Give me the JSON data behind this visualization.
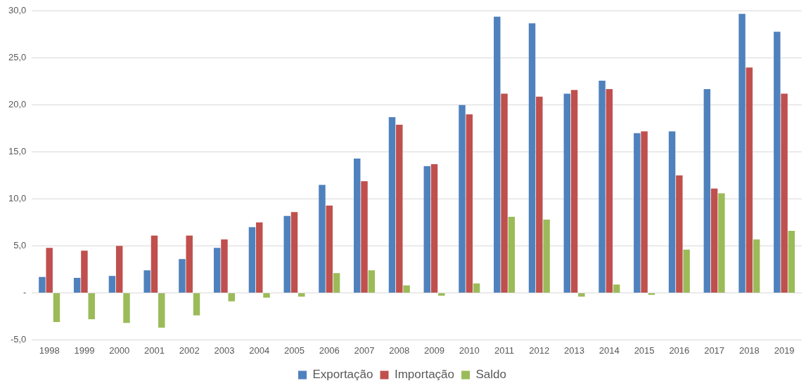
{
  "chart_data": {
    "type": "bar",
    "categories": [
      "1998",
      "1999",
      "2000",
      "2001",
      "2002",
      "2003",
      "2004",
      "2005",
      "2006",
      "2007",
      "2008",
      "2009",
      "2010",
      "2011",
      "2012",
      "2013",
      "2014",
      "2015",
      "2016",
      "2017",
      "2018",
      "2019"
    ],
    "series": [
      {
        "name": "Exportação",
        "color": "#4f81bd",
        "values": [
          1.7,
          1.6,
          1.8,
          2.4,
          3.6,
          4.8,
          7.0,
          8.2,
          11.5,
          14.3,
          18.7,
          13.5,
          20.0,
          29.4,
          28.7,
          21.2,
          22.6,
          17.0,
          17.2,
          21.7,
          29.7,
          27.8
        ]
      },
      {
        "name": "Importação",
        "color": "#c0504d",
        "values": [
          4.8,
          4.5,
          5.0,
          6.1,
          6.1,
          5.7,
          7.5,
          8.6,
          9.3,
          11.9,
          17.9,
          13.7,
          19.0,
          21.2,
          20.9,
          21.6,
          21.7,
          17.2,
          12.5,
          11.1,
          24.0,
          21.2
        ]
      },
      {
        "name": "Saldo",
        "color": "#9bbb59",
        "values": [
          -3.1,
          -2.8,
          -3.2,
          -3.7,
          -2.4,
          -0.9,
          -0.5,
          -0.4,
          2.1,
          2.4,
          0.8,
          -0.3,
          1.0,
          8.1,
          7.8,
          -0.4,
          0.9,
          -0.2,
          4.6,
          10.6,
          5.7,
          6.6
        ]
      }
    ],
    "ylim": [
      -5,
      30
    ],
    "yticks": [
      {
        "value": -5,
        "label": "-5,0"
      },
      {
        "value": 0,
        "label": "-"
      },
      {
        "value": 5,
        "label": "5,0"
      },
      {
        "value": 10,
        "label": "10,0"
      },
      {
        "value": 15,
        "label": "15,0"
      },
      {
        "value": 20,
        "label": "20,0"
      },
      {
        "value": 25,
        "label": "25,0"
      },
      {
        "value": 30,
        "label": "30,0"
      }
    ],
    "grid": "y",
    "legend": "bottom"
  }
}
